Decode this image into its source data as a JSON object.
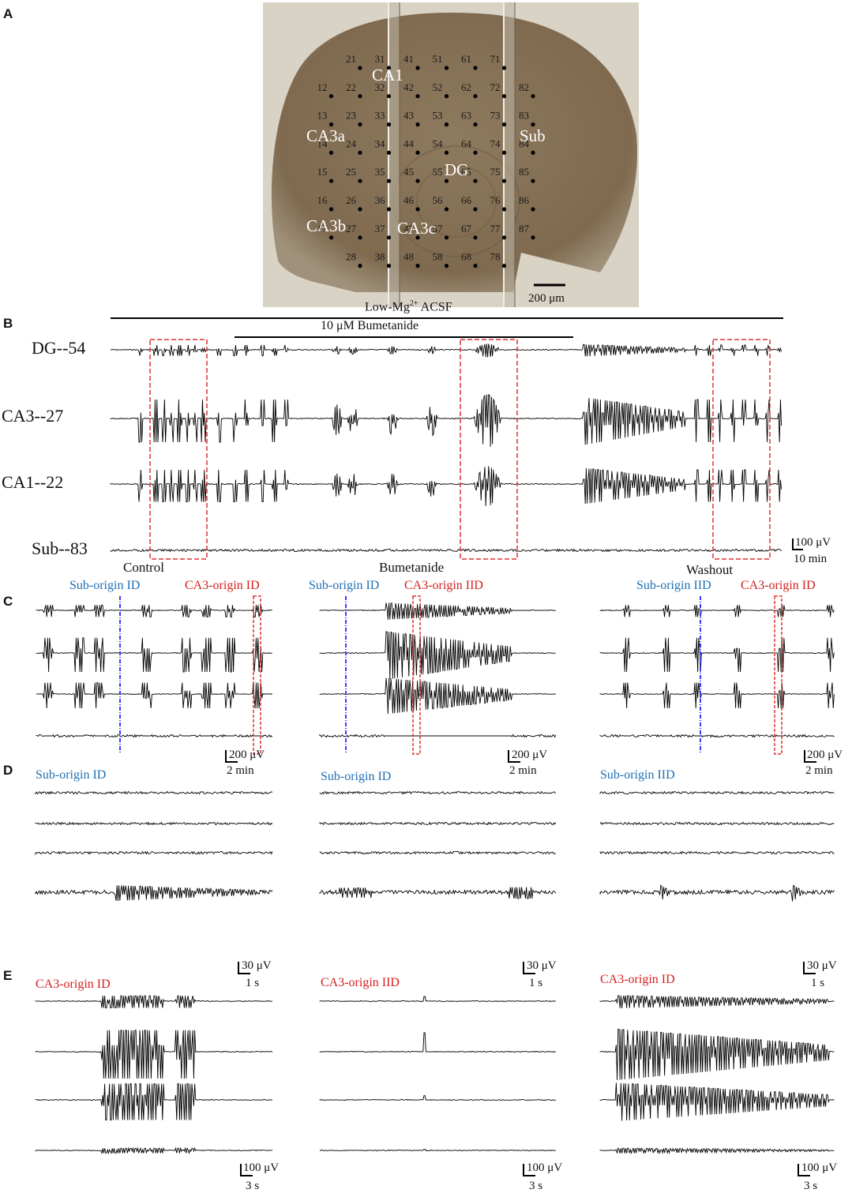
{
  "panels": {
    "a": "A",
    "b": "B",
    "c": "C",
    "d": "D",
    "e": "E"
  },
  "panel_a": {
    "electrodes": [
      [
        "21",
        0,
        0
      ],
      [
        "31",
        1,
        0
      ],
      [
        "41",
        2,
        0
      ],
      [
        "51",
        3,
        0
      ],
      [
        "61",
        4,
        0
      ],
      [
        "71",
        5,
        0
      ],
      [
        "12",
        -1,
        1
      ],
      [
        "22",
        0,
        1
      ],
      [
        "32",
        1,
        1
      ],
      [
        "42",
        2,
        1
      ],
      [
        "52",
        3,
        1
      ],
      [
        "62",
        4,
        1
      ],
      [
        "72",
        5,
        1
      ],
      [
        "82",
        6,
        1
      ],
      [
        "13",
        -1,
        2
      ],
      [
        "23",
        0,
        2
      ],
      [
        "33",
        1,
        2
      ],
      [
        "43",
        2,
        2
      ],
      [
        "53",
        3,
        2
      ],
      [
        "63",
        4,
        2
      ],
      [
        "73",
        5,
        2
      ],
      [
        "83",
        6,
        2
      ],
      [
        "14",
        -1,
        3
      ],
      [
        "24",
        0,
        3
      ],
      [
        "34",
        1,
        3
      ],
      [
        "44",
        2,
        3
      ],
      [
        "54",
        3,
        3
      ],
      [
        "64",
        4,
        3
      ],
      [
        "74",
        5,
        3
      ],
      [
        "84",
        6,
        3
      ],
      [
        "15",
        -1,
        4
      ],
      [
        "25",
        0,
        4
      ],
      [
        "35",
        1,
        4
      ],
      [
        "45",
        2,
        4
      ],
      [
        "55",
        3,
        4
      ],
      [
        "65",
        4,
        4
      ],
      [
        "75",
        5,
        4
      ],
      [
        "85",
        6,
        4
      ],
      [
        "16",
        -1,
        5
      ],
      [
        "26",
        0,
        5
      ],
      [
        "36",
        1,
        5
      ],
      [
        "46",
        2,
        5
      ],
      [
        "56",
        3,
        5
      ],
      [
        "66",
        4,
        5
      ],
      [
        "76",
        5,
        5
      ],
      [
        "86",
        6,
        5
      ],
      [
        "17",
        -1,
        6
      ],
      [
        "27",
        0,
        6
      ],
      [
        "37",
        1,
        6
      ],
      [
        "47",
        2,
        6
      ],
      [
        "57",
        3,
        6
      ],
      [
        "67",
        4,
        6
      ],
      [
        "77",
        5,
        6
      ],
      [
        "87",
        6,
        6
      ],
      [
        "28",
        0,
        7
      ],
      [
        "38",
        1,
        7
      ],
      [
        "48",
        2,
        7
      ],
      [
        "58",
        3,
        7
      ],
      [
        "68",
        4,
        7
      ],
      [
        "78",
        5,
        7
      ]
    ],
    "regions": {
      "ca1": "CA1",
      "ca3a": "CA3a",
      "sub": "Sub",
      "dg": "DG",
      "ca3b": "CA3b",
      "ca3c": "CA3c"
    },
    "scale_label": "200 μm",
    "colors": {
      "slice": "#8a7458",
      "background": "#d8d2c4",
      "electrode": "#000000",
      "region_text": "#ffffff"
    }
  },
  "panel_b": {
    "top_bar_label_pre": "Low-Mg",
    "top_bar_label_sup": "2+",
    "top_bar_label_post": " ACSF",
    "drug_bar_label": "10 μM Bumetanide",
    "channels": [
      "DG--54",
      "CA3--27",
      "CA1--22",
      "Sub--83"
    ],
    "scale_amp": "100 μV",
    "scale_time": "10 min",
    "conditions": [
      "Control",
      "Bumetanide",
      "Washout"
    ]
  },
  "panel_c": {
    "control": {
      "sub_label": "Sub-origin ID",
      "ca3_label": "CA3-origin ID",
      "scale_amp": "200 μV",
      "scale_time": "2 min"
    },
    "bumetanide": {
      "sub_label": "Sub-origin ID",
      "ca3_label": "CA3-origin IID",
      "scale_amp": "200 μV",
      "scale_time": "2 min"
    },
    "washout": {
      "sub_label": "Sub-origin IID",
      "ca3_label": "CA3-origin ID",
      "scale_amp": "200 μV",
      "scale_time": "2 min"
    }
  },
  "panel_d": {
    "control": {
      "title": "Sub-origin ID",
      "scale_amp": "30 μV",
      "scale_time": "1 s"
    },
    "bumetanide": {
      "title": "Sub-origin ID",
      "scale_amp": "30 μV",
      "scale_time": "1 s"
    },
    "washout": {
      "title": "Sub-origin IID",
      "scale_amp": "30 μV",
      "scale_time": "1 s"
    }
  },
  "panel_e": {
    "control": {
      "title": "CA3-origin ID",
      "scale_amp": "100 μV",
      "scale_time": "3 s"
    },
    "bumetanide": {
      "title": "CA3-origin IID",
      "scale_amp": "100 μV",
      "scale_time": "3 s"
    },
    "washout": {
      "title": "CA3-origin ID",
      "scale_amp": "100 μV",
      "scale_time": "3 s"
    }
  },
  "colors": {
    "trace": "#000000",
    "blue_text": "#1f6fb5",
    "red_text": "#d62020",
    "red_box": "#e03030",
    "blue_line": "#3a3aff"
  }
}
